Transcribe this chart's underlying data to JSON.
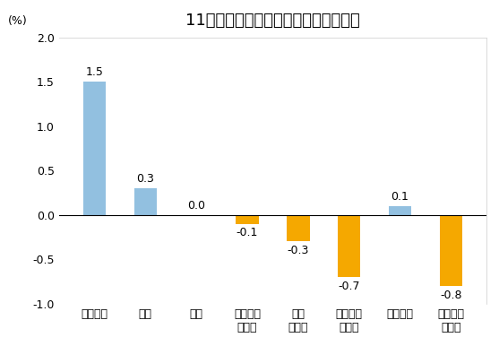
{
  "title": "11月份居民消费价格分类别环比涨跌幅",
  "ylabel": "(%)",
  "categories": [
    "食品烟酒",
    "衣着",
    "居住",
    "生活用品\n及服务",
    "交通\n和通信",
    "教育文化\n和娱乐",
    "医疗保健",
    "其他用品\n和服务"
  ],
  "values": [
    1.5,
    0.3,
    0.0,
    -0.1,
    -0.3,
    -0.7,
    0.1,
    -0.8
  ],
  "bar_colors": [
    "#92c0e0",
    "#92c0e0",
    "#92c0e0",
    "#f5a800",
    "#f5a800",
    "#f5a800",
    "#92c0e0",
    "#f5a800"
  ],
  "ylim": [
    -1.0,
    2.0
  ],
  "yticks": [
    -1.0,
    -0.5,
    0.0,
    0.5,
    1.0,
    1.5,
    2.0
  ],
  "value_labels": [
    "1.5",
    "0.3",
    "0.0",
    "-0.1",
    "-0.3",
    "-0.7",
    "0.1",
    "-0.8"
  ],
  "background_color": "#ffffff",
  "plot_bg_color": "#ffffff",
  "title_fontsize": 13,
  "tick_fontsize": 9,
  "label_fontsize": 9,
  "bar_width": 0.45
}
